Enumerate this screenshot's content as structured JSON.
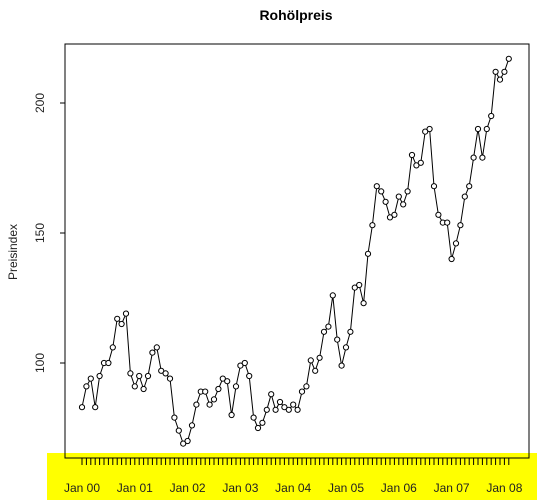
{
  "chart_data": {
    "type": "line",
    "title": "Rohölpreis",
    "xlabel": "",
    "ylabel": "Preisindex",
    "x_tick_labels": [
      "Jan 00",
      "Jan 01",
      "Jan 02",
      "Jan 03",
      "Jan 04",
      "Jan 05",
      "Jan 06",
      "Jan 07",
      "Jan 08"
    ],
    "y_ticks": [
      100,
      150,
      200
    ],
    "ylim": [
      65,
      222
    ],
    "x_start": "2000-01",
    "x_end": "2008-06",
    "frequency": "monthly",
    "markers": "open-circle",
    "values": [
      83,
      91,
      94,
      83,
      95,
      100,
      100,
      106,
      117,
      115,
      119,
      96,
      91,
      95,
      90,
      95,
      104,
      106,
      97,
      96,
      94,
      79,
      74,
      69,
      70,
      76,
      84,
      89,
      89,
      84,
      86,
      90,
      94,
      93,
      80,
      91,
      99,
      100,
      95,
      79,
      75,
      77,
      82,
      88,
      82,
      85,
      83,
      82,
      84,
      82,
      89,
      91,
      101,
      97,
      102,
      112,
      114,
      126,
      109,
      99,
      106,
      112,
      129,
      130,
      123,
      142,
      153,
      168,
      166,
      162,
      156,
      157,
      164,
      161,
      166,
      180,
      176,
      177,
      189,
      190,
      168,
      157,
      154,
      154,
      140,
      146,
      153,
      164,
      168,
      179,
      190,
      179,
      190,
      195,
      212,
      209,
      212,
      217
    ],
    "highlight_color": "#ffff00",
    "line_color": "#000000",
    "grid": false
  }
}
